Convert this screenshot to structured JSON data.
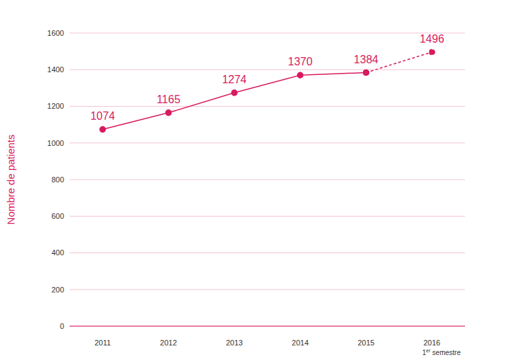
{
  "chart_data": {
    "type": "line",
    "categories": [
      "2011",
      "2012",
      "2013",
      "2014",
      "2015",
      "2016 1er semestre"
    ],
    "series": [
      {
        "values": [
          1074,
          1165,
          1274,
          1370,
          1384,
          null
        ],
        "line_style": "solid",
        "color": "#d81b60"
      },
      {
        "values": [
          null,
          null,
          null,
          null,
          1384,
          1496
        ],
        "line_style": "dashed",
        "color": "#d81b60"
      }
    ],
    "y_label": "Nombre de patients",
    "ylim": [
      0,
      1600
    ],
    "yticks": [
      0,
      200,
      400,
      600,
      800,
      1000,
      1200,
      1400,
      1600
    ],
    "grid": true,
    "data_labels": true,
    "marker": "circle"
  }
}
